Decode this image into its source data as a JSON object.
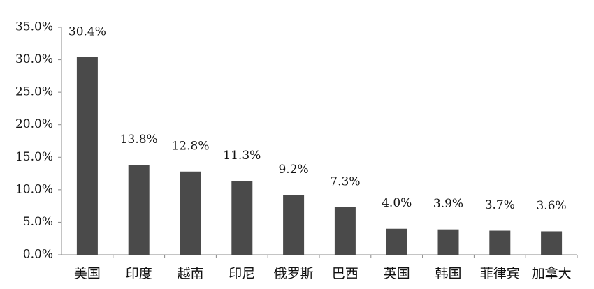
{
  "chart_data": {
    "type": "bar",
    "categories": [
      "美国",
      "印度",
      "越南",
      "印尼",
      "俄罗斯",
      "巴西",
      "英国",
      "韩国",
      "菲律宾",
      "加拿大"
    ],
    "values": [
      30.4,
      13.8,
      12.8,
      11.3,
      9.2,
      7.3,
      4.0,
      3.9,
      3.7,
      3.6
    ],
    "value_labels": [
      "30.4%",
      "13.8%",
      "12.8%",
      "11.3%",
      "9.2%",
      "7.3%",
      "4.0%",
      "3.9%",
      "3.7%",
      "3.6%"
    ],
    "color": "#4a4a4a",
    "ylim": [
      0,
      35
    ],
    "yticks": [
      {
        "value": 0,
        "label": "0.0%"
      },
      {
        "value": 5,
        "label": "5.0%"
      },
      {
        "value": 10,
        "label": "10.0%"
      },
      {
        "value": 15,
        "label": "15.0%"
      },
      {
        "value": 20,
        "label": "20.0%"
      },
      {
        "value": 25,
        "label": "25.0%"
      },
      {
        "value": 30,
        "label": "30.0%"
      },
      {
        "value": 35,
        "label": "35.0%"
      }
    ],
    "grid": false
  }
}
